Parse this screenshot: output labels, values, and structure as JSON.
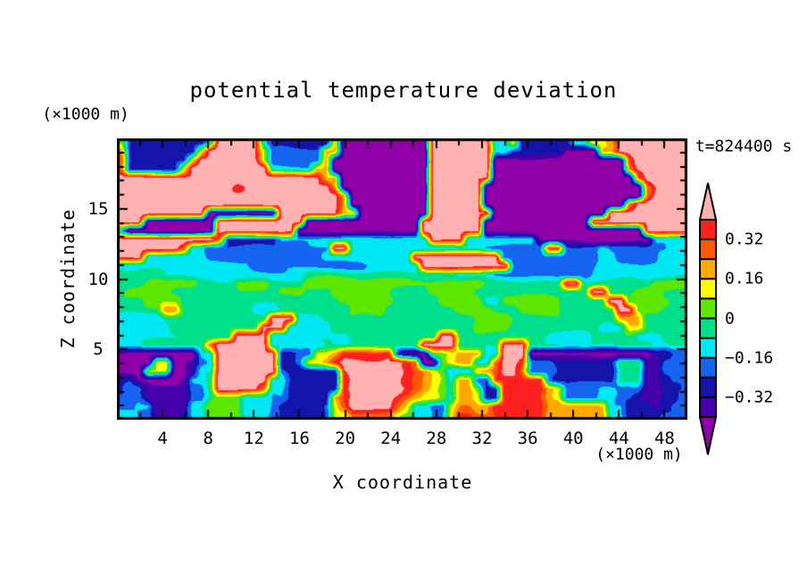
{
  "title": "potential temperature deviation",
  "time_label": "t=824400 s",
  "axes": {
    "x_label": "X coordinate",
    "x_unit": "(×1000 m)",
    "z_label": "Z coordinate",
    "z_unit": "(×1000 m)",
    "x_range": [
      0,
      50
    ],
    "z_range": [
      0,
      20
    ],
    "x_tick_labels": [
      4,
      8,
      12,
      16,
      20,
      24,
      28,
      32,
      36,
      40,
      44,
      48
    ],
    "x_minor_step": 2,
    "z_tick_labels": [
      5,
      10,
      15
    ],
    "z_minor_step": 1
  },
  "colorbar": {
    "orientation": "vertical",
    "tick_labels": [
      "0.32",
      "0.16",
      "0",
      "−0.16",
      "−0.32"
    ],
    "tick_values": [
      0.32,
      0.16,
      0,
      -0.16,
      -0.32
    ],
    "tick_boundary_index": [
      1,
      3,
      5,
      7,
      9
    ],
    "segment_colors_top_to_bottom": [
      "#FF2020",
      "#FF5A00",
      "#FFA800",
      "#FFFF00",
      "#5CE600",
      "#00E08C",
      "#00E8F4",
      "#1464F0",
      "#1414AA",
      "#4400AA"
    ],
    "over_arrow_color": "#FFB0B0",
    "under_arrow_color": "#9000A8",
    "level_step": 0.08
  },
  "chart_data": {
    "type": "heatmap",
    "title": "potential temperature deviation",
    "xlabel": "X coordinate (×1000 m)",
    "ylabel": "Z coordinate (×1000 m)",
    "x_range_km": [
      0,
      50
    ],
    "z_range_km": [
      0,
      20
    ],
    "time": "t=824400 s",
    "value_step": 0.08,
    "level_legend": "char codes map deviation bins: 0:<-0.40  1:-0.40..-0.32  2:-0.32..-0.24  3:-0.24..-0.16  4:-0.16..-0.08  5:-0.08..0  6:0..0.08  7:0.08..0.16  8:0.16..0.24  9:0.24..0.32  A:0.32..0.40  B:>0.40",
    "palette": [
      "#9000A8",
      "#4400AA",
      "#1414AA",
      "#1464F0",
      "#00E8F4",
      "#00E08C",
      "#5CE600",
      "#FFFF00",
      "#FFA800",
      "#FF5A00",
      "#FF2020",
      "#FFB0B0"
    ],
    "grid_cols": 64,
    "grid_rows": 32,
    "grid_rows_top_to_bottom": [
      "62222222224BBBBB4222222280000000000BBBBBBB44722222244778BBBBBBBB",
      "8222222227BBBBBB7333333880000000000BBBBBBB4422222200008 8BBBBBBBB",
      "922222227BBBBBBB73333338 00000000000BBBBBBB0000000000000009BBBBBB",
      "92222227BBBBBBBBB444448800000000000BBBBBBB0000000000000009BBBBBB",
      "BBBBBBBBBBBBBBBBBBBBBBB880000000000BBBBBBB00000000000000009BBBBB",
      "BBBBBBBBBBBBBABBBBBBBBBB80000000000BBBBBB0000000000000000009BBBB",
      "BBBBBBBBBBBBBBBBBBBBBBBBB8000000000BBBBBB0000000000000000009BBBB",
      "BBBBBBBBBBBBBBBBBBBBBBBBB8000000000BBBBBB00000000000000009BBBBBB",
      "BBBBBBBBBB00000000BBBBBBB8800000000BBBBBBB0000000000000BBBBBBBBB",
      "BBB00000000BBBBBBBBBB0000000000000BBBBBBB000000000000BBBBBBBBBBB",
      "40000000000BBBBBBBBB00000000000000BBBBBBB000000000000000000BBBBB",
      "BBBBBBBBBBB922222244444444444444444BBBB44444444000000000000 04444",
      "BBBBBBB94433333333333333BB444444444444444333333 3AA33334333333344",
      "BBB444444433333333333334444444444BBBBBBBBBB3333333333344333334 44",
      "444444444444444333333333333344444 4BBBBBBBBBB33333333334444444444",
      "555554444444444444444555555555555555554444333333333334444444 4444",
      "55566666655556666555566666666666666666666555555555BB555555556666",
      "56666655555555555566655566666665555666665555555555555BB555666555",
      "555666655555555555555555566666655555666664466666665 5555BB5666655",
      "555558855555555444555555556666555555556666555666665555 55BB666555",
      "44444555555555555BBB4445555555555555555566665555555555558885 5555",
      "444444555555555 5BBB4444455555555555555556666555555555544477 55555",
      "44444445555 55BBBB44444444455555555 55BB5555555555444445555544455 5",
      "44455555559BBBBBB4444445555555555 5BBBB55555BBB555544444455554455",
      "00000000044BBBBBBB223377 8AAAAAA20006678884 4BBB000000000000002233",
      "00007700134BBBBBBB2237 78ABBBBBBBA900678844 9BB933322222225551133 3",
      "000777001 44BBBBBBB3222222ABBBBBBA987644 48 89BB93332222222555 11333",
      "2200000144 5BBBBBB4422222 2ABBBBBBA987648833AAAAAA3222222255511233",
      "23311111335BBBBB94 42222 22ABBBBBBA9876588622AAAAA873333443331122 3",
      "33311111335666444332222 28ABBBBBA98776488722AAAAA8733334433211223",
      "334411114466664443222223 79BBBBB97443 3799 88AAAAAA888888844222123 3",
      "4433111244666644432222 23779999976 4433 7AA99AAAAAA888888844222233 3"
    ]
  }
}
